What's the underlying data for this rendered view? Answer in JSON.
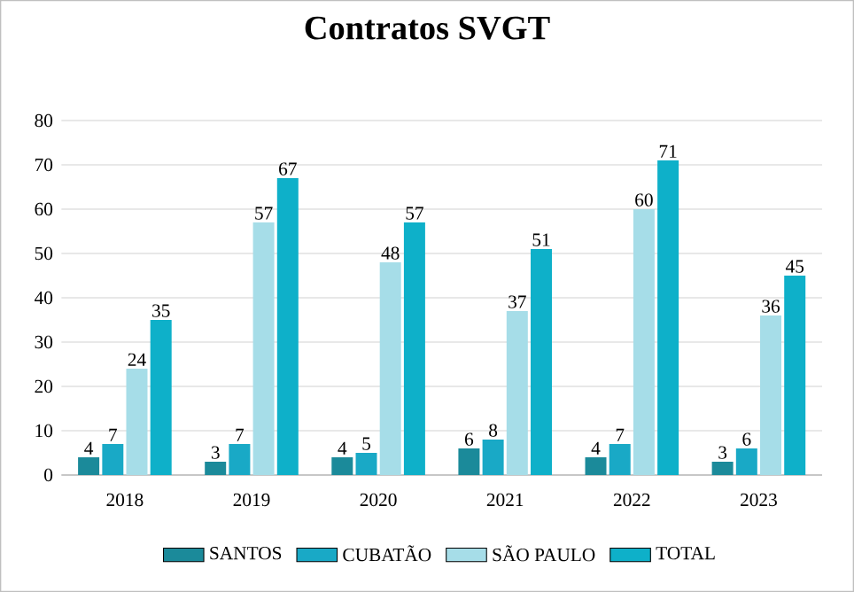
{
  "chart_data": {
    "type": "bar",
    "title": "Contratos SVGT",
    "categories": [
      "2018",
      "2019",
      "2020",
      "2021",
      "2022",
      "2023"
    ],
    "series": [
      {
        "name": "SANTOS",
        "color": "#1b8a9a",
        "values": [
          4,
          3,
          4,
          6,
          4,
          3
        ]
      },
      {
        "name": "CUBATÃO",
        "color": "#19a9c6",
        "values": [
          7,
          7,
          5,
          8,
          7,
          6
        ]
      },
      {
        "name": "SÃO PAULO",
        "color": "#a6dde8",
        "values": [
          24,
          57,
          48,
          37,
          60,
          36
        ]
      },
      {
        "name": "TOTAL",
        "color": "#0eb0c9",
        "values": [
          35,
          67,
          57,
          51,
          71,
          45
        ]
      }
    ],
    "ylim": [
      0,
      80
    ],
    "yticks": [
      0,
      10,
      20,
      30,
      40,
      50,
      60,
      70,
      80
    ],
    "grid": "y",
    "legend": "bottom",
    "data_labels": true
  }
}
